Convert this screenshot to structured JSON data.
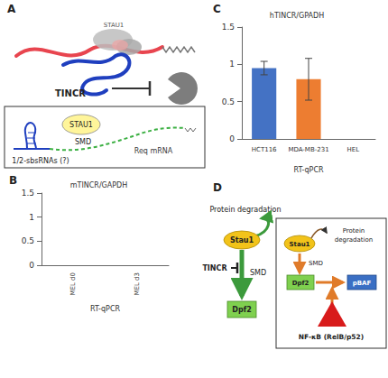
{
  "panels": {
    "A": {
      "label": "A",
      "top": {
        "protein": "STAU1",
        "rna": "TINCR"
      },
      "box": {
        "protein": "STAU1",
        "process": "SMD",
        "rna": "1/2-sbsRNAs (?)",
        "target": "Req mRNA"
      }
    },
    "B": {
      "label": "B"
    },
    "C": {
      "label": "C"
    },
    "D": {
      "label": "D",
      "left": {
        "degradation": "Protein degradation",
        "protein": "Stau1",
        "inhibitor": "TINCR",
        "process": "SMD",
        "target": "Dpf2"
      },
      "box": {
        "protein": "Stau1",
        "degradation": [
          "Protein",
          "degradation"
        ],
        "process": "SMD",
        "target": "Dpf2",
        "complex": "pBAF",
        "factor": "NF-κB (RelB/p52)"
      }
    }
  },
  "chart_data": [
    {
      "type": "bar",
      "panel": "B",
      "title": "mTINCR/GAPDH",
      "x_label": "RT-qPCR",
      "categories": [
        "MEL d0",
        "MEL d3"
      ],
      "values": [
        0,
        0
      ],
      "ylim": [
        0,
        1.5
      ],
      "yticks": [
        0,
        0.5,
        1,
        1.5
      ],
      "grid": false
    },
    {
      "type": "bar",
      "panel": "C",
      "title": "hTINCR/GPADH",
      "x_label": "RT-qPCR",
      "categories": [
        "HCT116",
        "MDA-MB-231",
        "HEL"
      ],
      "values": [
        0.95,
        0.8,
        0
      ],
      "errors": [
        0.09,
        0.28,
        0
      ],
      "colors": [
        "#4472c4",
        "#ed7d31",
        "#a5a5a5"
      ],
      "ylim": [
        0,
        1.5
      ],
      "yticks": [
        0,
        0.5,
        1,
        1.5
      ],
      "grid": false
    }
  ]
}
